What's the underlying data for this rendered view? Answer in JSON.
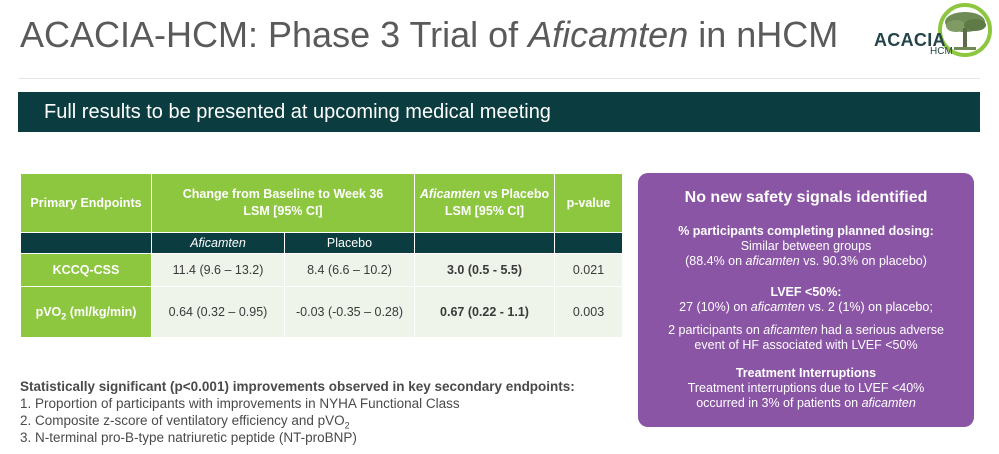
{
  "header": {
    "title_prefix": "ACACIA-HCM: Phase 3 Trial of ",
    "title_drug": "Aficamten",
    "title_suffix": " in nHCM",
    "logo_text": "ACACIA",
    "logo_sub": "HCM"
  },
  "banner": {
    "text": "Full results to be presented at upcoming medical meeting"
  },
  "table": {
    "headers": {
      "col1": "Primary Endpoints",
      "col2_line1": "Change from Baseline to Week 36",
      "col2_line2": "LSM [95% CI]",
      "col4_drug": "Aficamten",
      "col4_rest": " vs Placebo",
      "col4_line2": "LSM [95% CI]",
      "col5": "p-value"
    },
    "subheaders": {
      "aficamten": "Aficamten",
      "placebo": "Placebo"
    },
    "rows": [
      {
        "endpoint": "KCCQ-CSS",
        "aficamten": "11.4 (9.6 – 13.2)",
        "placebo": "8.4 (6.6 – 10.2)",
        "diff": "3.0 (0.5 - 5.5)",
        "p": "0.021"
      },
      {
        "endpoint_pre": "pVO",
        "endpoint_sub": "2",
        "endpoint_post": " (ml/kg/min)",
        "aficamten": "0.64 (0.32 – 0.95)",
        "placebo": "-0.03 (-0.35 – 0.28)",
        "diff": "0.67 (0.22 - 1.1)",
        "p": "0.003"
      }
    ]
  },
  "safety": {
    "heading": "No new safety signals identified",
    "dosing_heading": "% participants completing planned dosing:",
    "dosing_line1": "Similar between groups",
    "dosing_line2_a": "(88.4% on ",
    "dosing_line2_drug": "aficamten",
    "dosing_line2_b": " vs. 90.3% on placebo)",
    "lvef_heading": "LVEF <50%:",
    "lvef_line_a": "27 (10%) on ",
    "lvef_line_drug": "aficamten",
    "lvef_line_b": " vs. 2 (1%) on placebo;",
    "sae_line1_a": "2 participants on ",
    "sae_line1_drug": "aficamten",
    "sae_line1_b": " had a serious adverse",
    "sae_line2": "event of HF associated with LVEF <50%",
    "interrupt_heading": "Treatment Interruptions",
    "interrupt_line1": "Treatment interruptions due to LVEF <40%",
    "interrupt_line2_a": "occurred in 3% of patients on ",
    "interrupt_line2_drug": "aficamten"
  },
  "secondary": {
    "heading": "Statistically significant (p<0.001) improvements observed in key secondary endpoints:",
    "items": [
      {
        "num": "1.",
        "text": "Proportion of participants with improvements in NYHA Functional Class"
      },
      {
        "num": "2.",
        "text_pre": "Composite z-score of ventilatory efficiency and pVO",
        "text_sub": "2"
      },
      {
        "num": "3.",
        "text": "N-terminal pro-B-type natriuretic peptide (NT-proBNP)"
      }
    ]
  },
  "colors": {
    "green": "#8dc63f",
    "dark_teal": "#0b3d40",
    "purple": "#8a55a4",
    "row_bg": "#eef4ea"
  }
}
